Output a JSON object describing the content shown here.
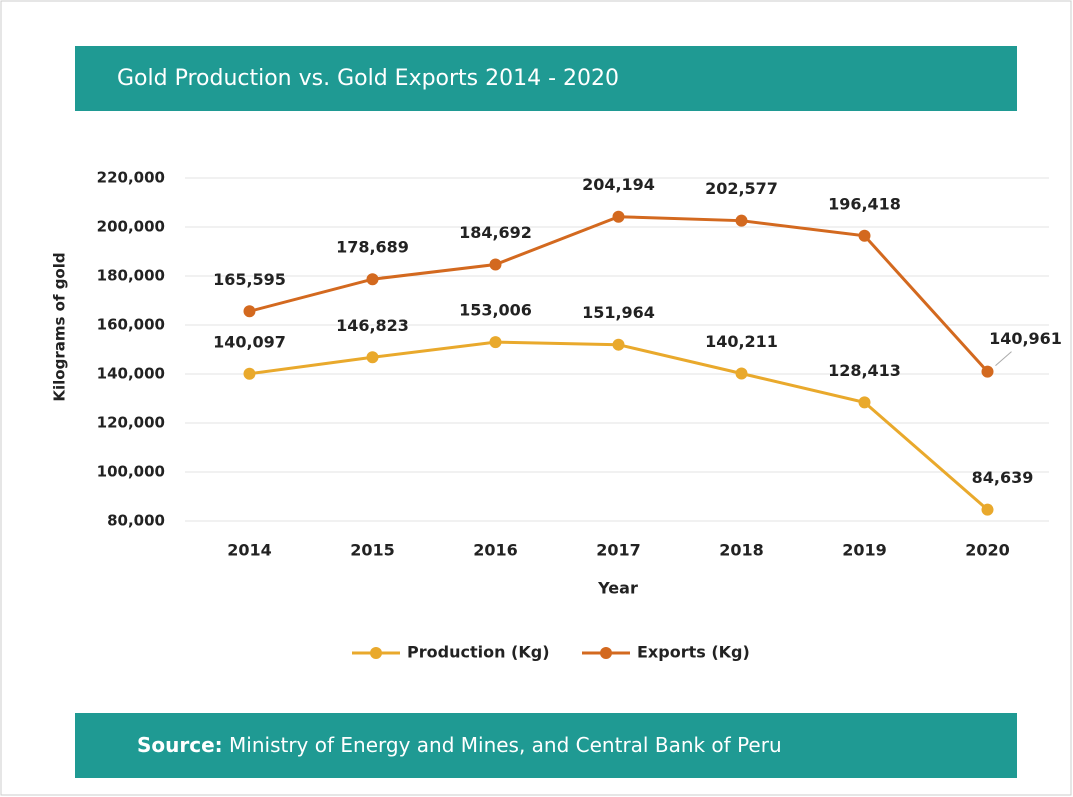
{
  "chart_data": {
    "type": "line",
    "title": "Gold Production vs. Gold Exports 2014 - 2020",
    "categories": [
      "2014",
      "2015",
      "2016",
      "2017",
      "2018",
      "2019",
      "2020"
    ],
    "series": [
      {
        "name": "Production (Kg)",
        "color": "#e9a92c",
        "values": [
          140097,
          146823,
          153006,
          151964,
          140211,
          128413,
          84639
        ],
        "value_labels": [
          "140,097",
          "146,823",
          "153,006",
          "151,964",
          "140,211",
          "128,413",
          "84,639"
        ]
      },
      {
        "name": "Exports (Kg)",
        "color": "#d3691f",
        "values": [
          165595,
          178689,
          184692,
          204194,
          202577,
          196418,
          140961
        ],
        "value_labels": [
          "165,595",
          "178,689",
          "184,692",
          "204,194",
          "202,577",
          "196,418",
          "140,961"
        ]
      }
    ],
    "xlabel": "Year",
    "ylabel": "Kilograms of gold",
    "ylim": [
      80000,
      220000
    ],
    "yticks": [
      {
        "value": 80000,
        "label": "80,000"
      },
      {
        "value": 100000,
        "label": "100,000"
      },
      {
        "value": 120000,
        "label": "120,000"
      },
      {
        "value": 140000,
        "label": "140,000"
      },
      {
        "value": 160000,
        "label": "160,000"
      },
      {
        "value": 180000,
        "label": "180,000"
      },
      {
        "value": 200000,
        "label": "200,000"
      },
      {
        "value": 220000,
        "label": "220,000"
      }
    ],
    "grid": true,
    "legend": "bottom",
    "source": {
      "label": "Source:",
      "text": "Ministry of Energy and Mines, and Central Bank of Peru"
    }
  }
}
